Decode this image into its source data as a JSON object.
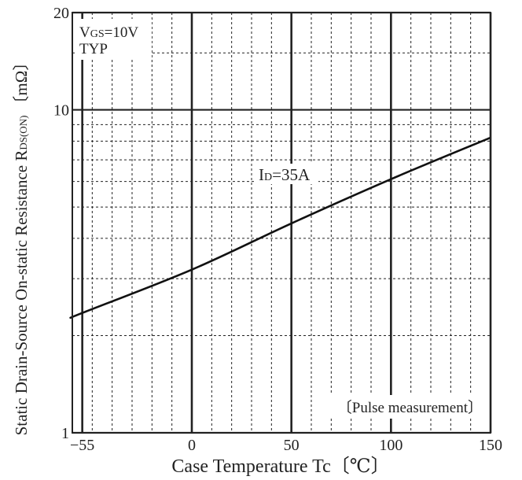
{
  "chart_data": {
    "type": "line",
    "x_scale": "linear",
    "y_scale": "log",
    "xlim": [
      -60,
      150
    ],
    "ylim": [
      1,
      20
    ],
    "x_major_ticks": [
      -55,
      0,
      50,
      100,
      150
    ],
    "x_tick_labels": [
      "−55",
      "0",
      "50",
      "100",
      "150"
    ],
    "x_minor_grid": [
      -50,
      -40,
      -30,
      -20,
      -10,
      10,
      20,
      30,
      40,
      60,
      70,
      80,
      90,
      110,
      120,
      130,
      140
    ],
    "y_major_ticks": [
      1,
      10,
      20
    ],
    "y_tick_labels": [
      "1",
      "10",
      "20"
    ],
    "y_minor_grid": [
      2,
      3,
      4,
      5,
      6,
      7,
      8,
      9,
      15
    ],
    "grid": true,
    "xlabel": "Case Temperature  Tc〔℃〕",
    "ylabel": {
      "main": "Static Drain-Source On-static Resistance  R",
      "sub": "DS(ON)",
      "unit": "〔mΩ〕"
    },
    "annotations": {
      "vgs": {
        "main": "V",
        "sub": "GS",
        "rest": "=10V"
      },
      "typ": "TYP",
      "id_label": {
        "main": "I",
        "sub": "D",
        "rest": "=35A"
      },
      "pulse": "〔Pulse measurement〕"
    },
    "series": [
      {
        "name": "ID=35A",
        "x": [
          -60,
          -55,
          0,
          50,
          100,
          150
        ],
        "y": [
          2.28,
          2.35,
          3.2,
          4.45,
          6.1,
          8.2
        ]
      }
    ],
    "colors": {
      "line": "#111111",
      "grid": "#222222",
      "text": "#222222"
    }
  }
}
